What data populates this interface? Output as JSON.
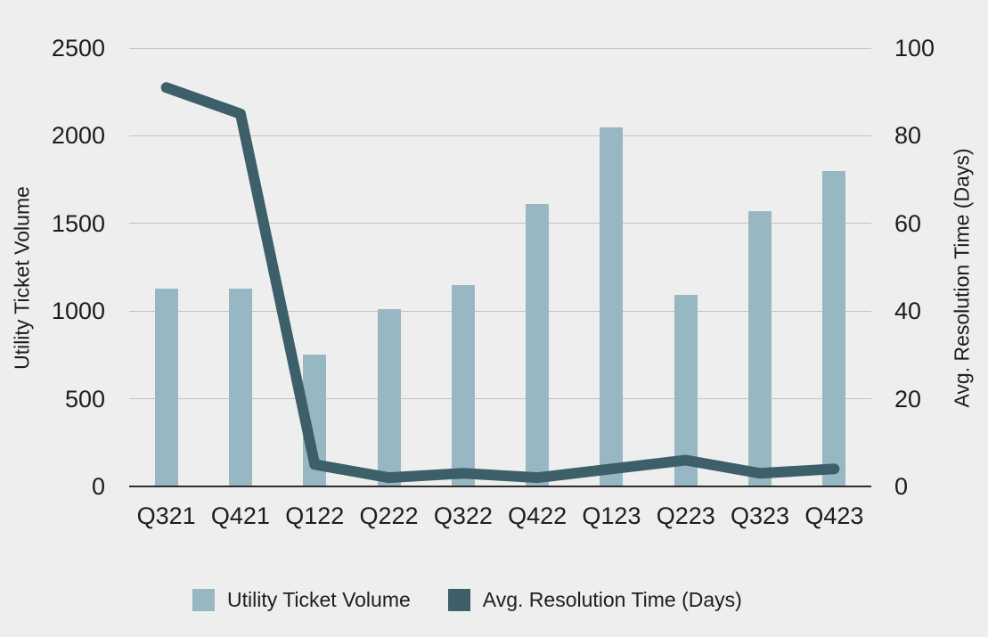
{
  "colors": {
    "background": "#eeeeee",
    "bar": "#97b7c2",
    "line": "#3d5f6a",
    "gridline": "#c3c3c3",
    "axis_line": "#2d2d2d",
    "text": "#1d1d1d"
  },
  "chart_data": {
    "type": "bar",
    "subtype": "dual-axis combo (bar + line)",
    "categories": [
      "Q321",
      "Q421",
      "Q122",
      "Q222",
      "Q322",
      "Q422",
      "Q123",
      "Q223",
      "Q323",
      "Q423"
    ],
    "series": [
      {
        "name": "Utility Ticket Volume",
        "type": "bar",
        "axis": "left",
        "color": "#97b7c2",
        "values": [
          1130,
          1130,
          750,
          1010,
          1150,
          1610,
          2050,
          1090,
          1570,
          1800
        ]
      },
      {
        "name": "Avg. Resolution Time (Days)",
        "type": "line",
        "axis": "right",
        "color": "#3d5f6a",
        "values": [
          91,
          85,
          5,
          2,
          3,
          2,
          4,
          6,
          3,
          4
        ]
      }
    ],
    "left_axis": {
      "label": "Utility Ticket Volume",
      "min": 0,
      "max": 2500,
      "ticks": [
        2500,
        2000,
        1500,
        1000,
        500,
        0
      ]
    },
    "right_axis": {
      "label": "Avg. Resolution Time (Days)",
      "min": 0,
      "max": 100,
      "ticks": [
        100,
        80,
        60,
        40,
        20,
        0
      ]
    },
    "grid": true,
    "legend_position": "bottom",
    "legend": [
      "Utility Ticket Volume",
      "Avg. Resolution Time (Days)"
    ]
  }
}
